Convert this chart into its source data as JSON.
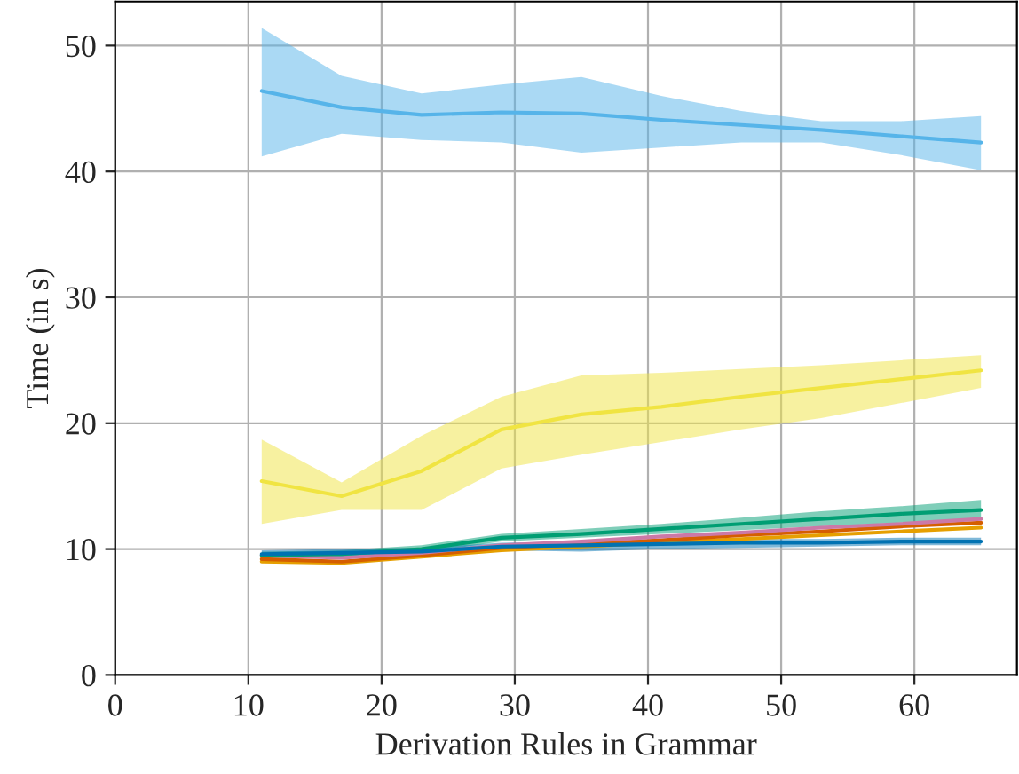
{
  "chart_data": {
    "type": "line",
    "xlabel": "Derivation Rules in Grammar",
    "ylabel": "Time (in s)",
    "x": [
      11,
      17,
      23,
      29,
      35,
      41,
      47,
      53,
      59,
      65
    ],
    "xlim": [
      0,
      67.7
    ],
    "ylim": [
      0,
      53.5
    ],
    "xticks": [
      0,
      10,
      20,
      30,
      40,
      50,
      60
    ],
    "yticks": [
      0,
      10,
      20,
      30,
      40,
      50
    ],
    "grid": true,
    "legend": false,
    "series": [
      {
        "color": "#56b4e9",
        "values": [
          46.4,
          45.1,
          44.5,
          44.7,
          44.6,
          44.1,
          43.7,
          43.3,
          42.8,
          42.3
        ],
        "lower": [
          41.2,
          43.0,
          42.5,
          42.3,
          41.5,
          41.9,
          42.3,
          42.3,
          41.3,
          40.1
        ],
        "upper": [
          51.4,
          47.6,
          46.2,
          46.9,
          47.5,
          46.0,
          44.8,
          44.0,
          44.0,
          44.4
        ]
      },
      {
        "color": "#f0e442",
        "values": [
          15.4,
          14.2,
          16.2,
          19.5,
          20.7,
          21.3,
          22.1,
          22.8,
          23.5,
          24.2
        ],
        "lower": [
          12.0,
          13.1,
          13.1,
          16.4,
          17.5,
          18.5,
          19.5,
          20.4,
          21.6,
          22.8
        ],
        "upper": [
          18.7,
          15.3,
          19.0,
          22.1,
          23.8,
          24.0,
          24.3,
          24.6,
          25.0,
          25.4
        ]
      },
      {
        "color": "#e69f00",
        "values": [
          9.0,
          8.9,
          9.4,
          9.9,
          10.2,
          10.5,
          10.8,
          11.1,
          11.4,
          11.7
        ]
      },
      {
        "color": "#d55e00",
        "values": [
          9.2,
          9.0,
          9.5,
          10.1,
          10.4,
          10.7,
          11.1,
          11.4,
          11.8,
          12.1
        ]
      },
      {
        "color": "#cc79a7",
        "values": [
          9.5,
          9.3,
          9.7,
          10.3,
          10.6,
          11.0,
          11.3,
          11.7,
          12.0,
          12.4
        ]
      },
      {
        "color": "#009e73",
        "values": [
          9.5,
          9.6,
          10.0,
          10.9,
          11.2,
          11.6,
          12.0,
          12.4,
          12.8,
          13.1
        ],
        "lower": [
          9.2,
          9.3,
          9.7,
          10.6,
          10.9,
          11.2,
          11.5,
          11.8,
          12.1,
          12.4
        ],
        "upper": [
          9.8,
          9.9,
          10.3,
          11.2,
          11.6,
          12.0,
          12.5,
          13.0,
          13.4,
          13.9
        ]
      },
      {
        "color": "#0072b2",
        "values": [
          9.6,
          9.7,
          9.8,
          10.2,
          10.3,
          10.4,
          10.5,
          10.5,
          10.6,
          10.6
        ],
        "lower": [
          9.3,
          9.4,
          9.5,
          9.9,
          9.8,
          10.0,
          10.1,
          10.2,
          10.3,
          10.3
        ],
        "upper": [
          9.9,
          10.0,
          10.1,
          10.5,
          10.6,
          10.7,
          10.8,
          10.8,
          10.9,
          10.9
        ]
      }
    ]
  }
}
